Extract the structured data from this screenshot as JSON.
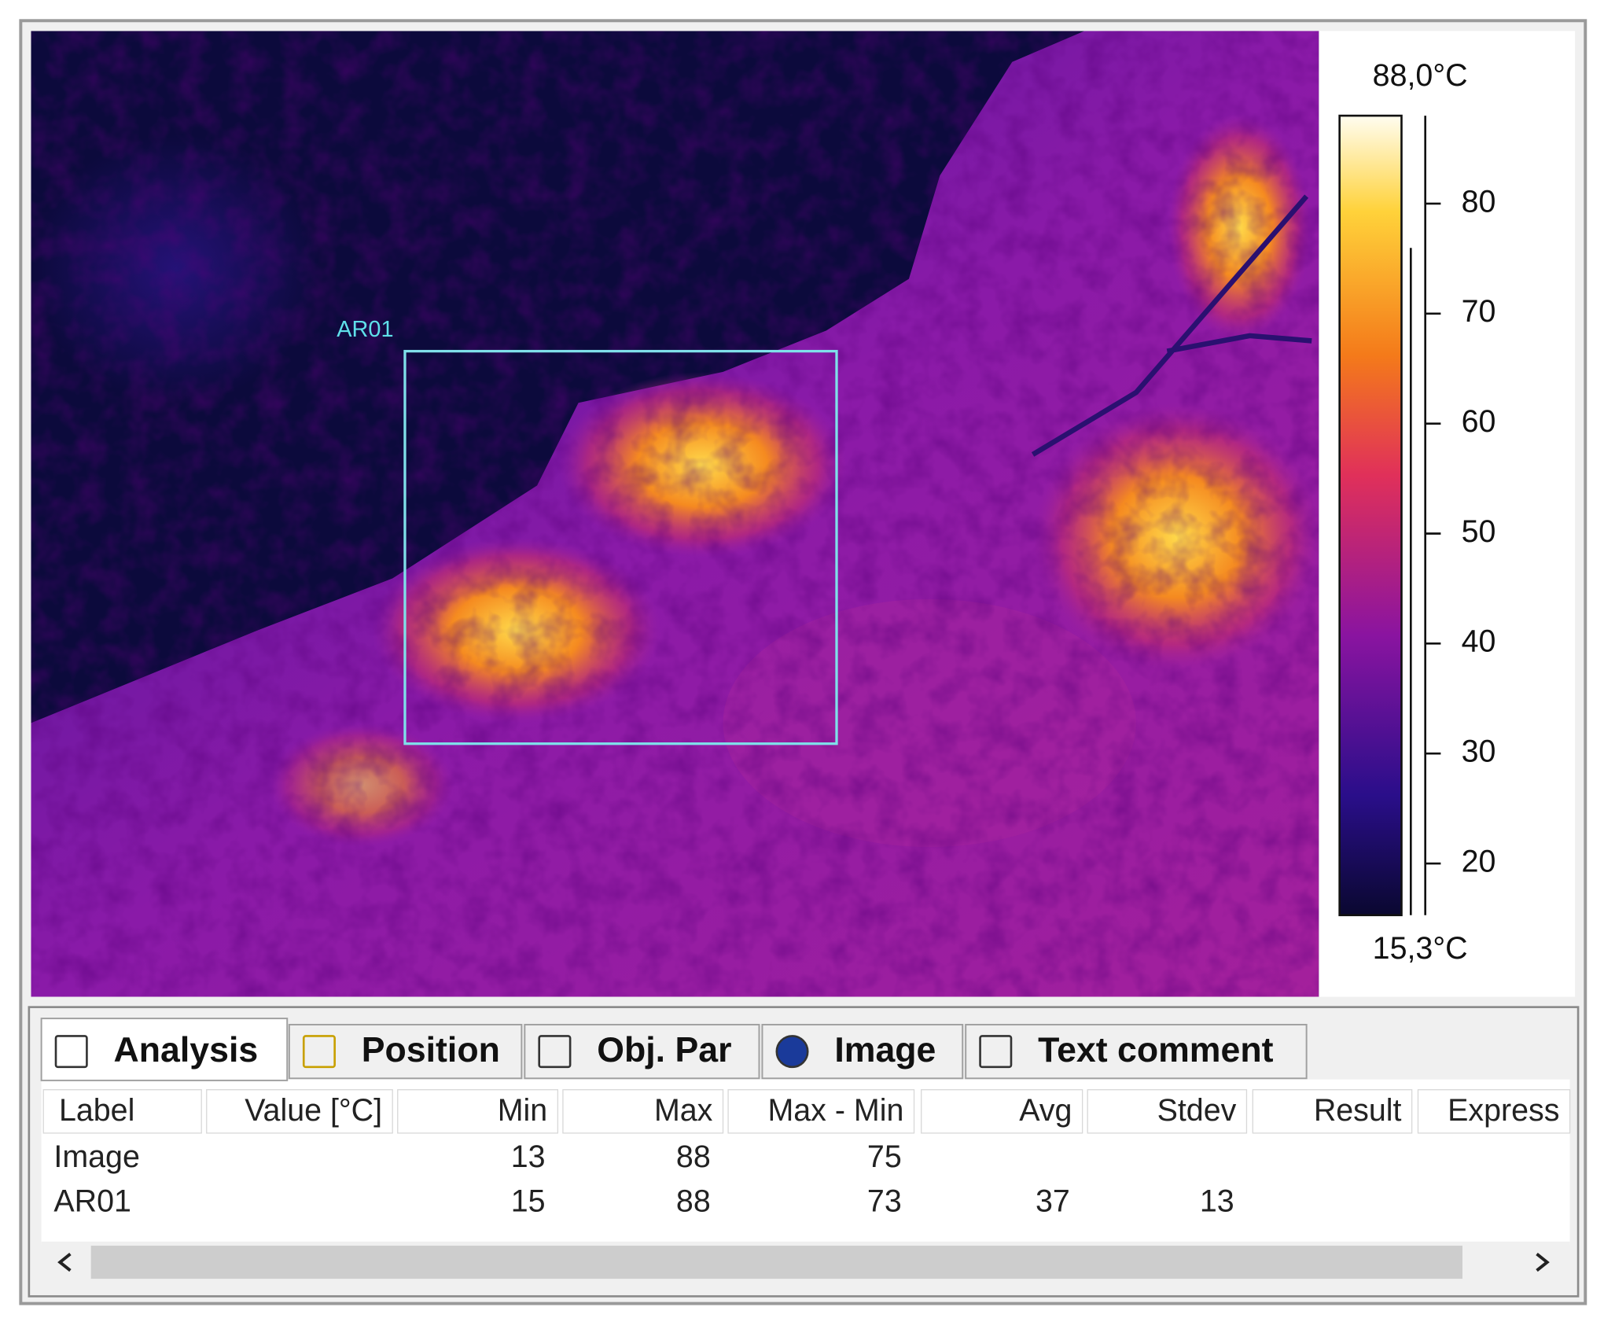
{
  "image": {
    "roi_label": "AR01"
  },
  "colorbar": {
    "max": {
      "value": 88.0,
      "label": "88,0°C"
    },
    "min": {
      "value": 15.3,
      "label": "15,3°C"
    },
    "ticks": [
      80,
      70,
      60,
      50,
      40,
      30,
      20
    ]
  },
  "tabs": [
    "Analysis",
    "Position",
    "Obj. Par",
    "Image",
    "Text comment"
  ],
  "table": {
    "columns": [
      "Label",
      "Value [°C]",
      "Min",
      "Max",
      "Max - Min",
      "Avg",
      "Stdev",
      "Result",
      "Express"
    ],
    "rows": [
      [
        "Image",
        null,
        13,
        88,
        75,
        null,
        null,
        null,
        null
      ],
      [
        "AR01",
        null,
        15,
        88,
        73,
        37,
        13,
        null,
        null
      ]
    ]
  }
}
